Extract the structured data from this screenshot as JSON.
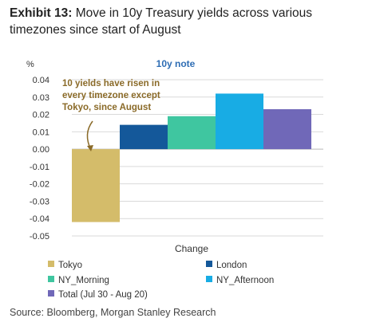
{
  "header": {
    "exhibit_label": "Exhibit 13:",
    "title_text": "Move in 10y Treasury yields across various timezones since start of August"
  },
  "chart_data": {
    "type": "bar",
    "title": "10y note",
    "ylabel": "%",
    "xlabel": "Change",
    "ylim": [
      -0.05,
      0.04
    ],
    "yticks": [
      0.04,
      0.03,
      0.02,
      0.01,
      0.0,
      -0.01,
      -0.02,
      -0.03,
      -0.04,
      -0.05
    ],
    "ytick_labels": [
      "0.04",
      "0.03",
      "0.02",
      "0.01",
      "0.00",
      "-0.01",
      "-0.02",
      "-0.03",
      "-0.04",
      "-0.05"
    ],
    "grid": true,
    "legend_position": "bottom",
    "series": [
      {
        "name": "Tokyo",
        "value": -0.042,
        "color": "#d4bc6a"
      },
      {
        "name": "London",
        "value": 0.014,
        "color": "#14589a"
      },
      {
        "name": "NY_Morning",
        "value": 0.019,
        "color": "#3fc6a0"
      },
      {
        "name": "NY_Afternoon",
        "value": 0.032,
        "color": "#18ace4"
      },
      {
        "name": "Total (Jul 30 - Aug 20)",
        "value": 0.023,
        "color": "#7068b8"
      }
    ],
    "annotation": {
      "lines": [
        "10 yields  have risen in",
        "every timezone except",
        "Tokyo, since August"
      ],
      "color": "#8a6a28"
    }
  },
  "source": "Source: Bloomberg, Morgan Stanley Research"
}
